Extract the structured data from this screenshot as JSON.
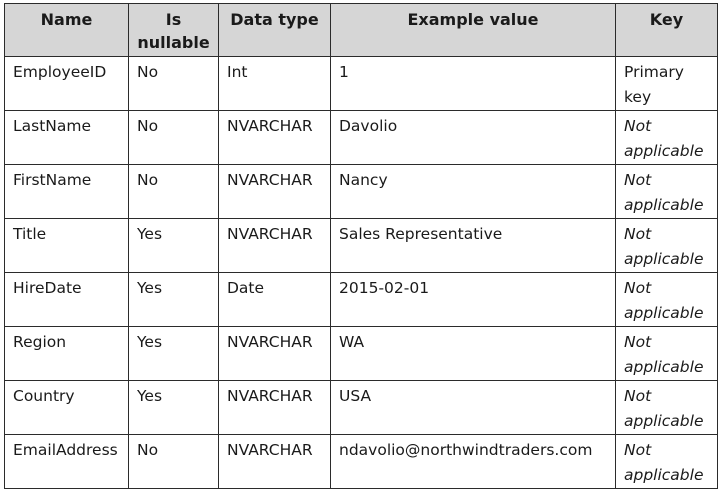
{
  "table": {
    "headers": {
      "name": "Name",
      "nullable": "Is nullable",
      "type": "Data type",
      "example": "Example value",
      "key": "Key"
    },
    "rows": [
      {
        "name": "EmployeeID",
        "nullable": "No",
        "type": "Int",
        "example": "1",
        "key": "Primary key",
        "key_italic": false
      },
      {
        "name": "LastName",
        "nullable": "No",
        "type": "NVARCHAR",
        "example": "Davolio",
        "key": "Not applicable",
        "key_italic": true
      },
      {
        "name": "FirstName",
        "nullable": "No",
        "type": "NVARCHAR",
        "example": "Nancy",
        "key": "Not applicable",
        "key_italic": true
      },
      {
        "name": "Title",
        "nullable": "Yes",
        "type": "NVARCHAR",
        "example": "Sales Representative",
        "key": "Not applicable",
        "key_italic": true
      },
      {
        "name": "HireDate",
        "nullable": "Yes",
        "type": "Date",
        "example": "2015-02-01",
        "key": "Not applicable",
        "key_italic": true
      },
      {
        "name": "Region",
        "nullable": "Yes",
        "type": "NVARCHAR",
        "example": "WA",
        "key": "Not applicable",
        "key_italic": true
      },
      {
        "name": "Country",
        "nullable": "Yes",
        "type": "NVARCHAR",
        "example": "USA",
        "key": "Not applicable",
        "key_italic": true
      },
      {
        "name": "EmailAddress",
        "nullable": "No",
        "type": "NVARCHAR",
        "example": "ndavolio@northwindtraders.com",
        "key": "Not applicable",
        "key_italic": true
      }
    ]
  }
}
